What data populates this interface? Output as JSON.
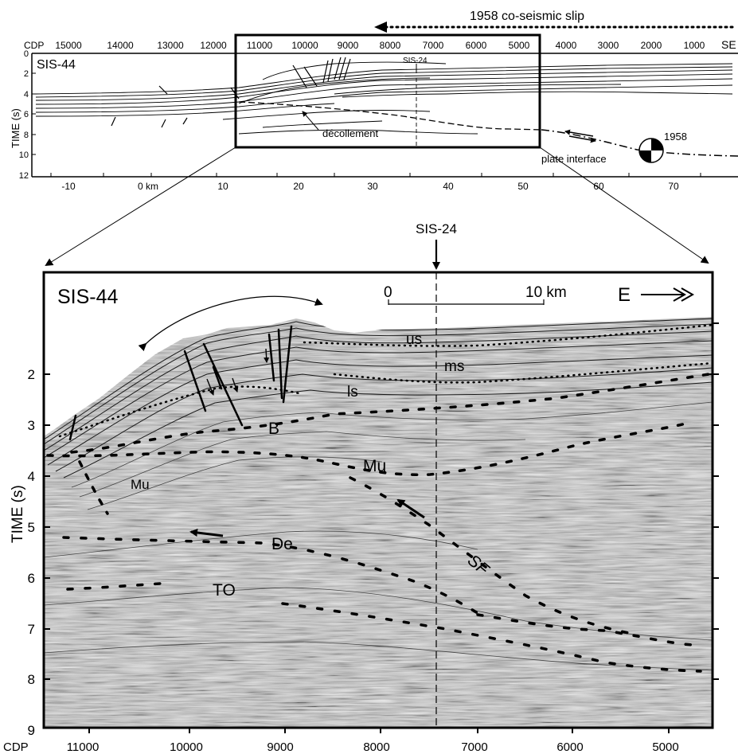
{
  "top_panel": {
    "slip_label": "1958 co-seismic slip",
    "section_label": "SIS-44",
    "cdp_prefix": "CDP",
    "cdp_ticks": [
      "15000",
      "14000",
      "13000",
      "12000",
      "11000",
      "10000",
      "9000",
      "8000",
      "7000",
      "6000",
      "5000",
      "4000",
      "3000",
      "2000",
      "1000"
    ],
    "direction_label": "SE",
    "time_axis_label": "TIME (s)",
    "time_ticks": [
      "0",
      "2",
      "4",
      "6",
      "8",
      "10",
      "12"
    ],
    "km_ticks": [
      "-10",
      "0 km",
      "10",
      "20",
      "30",
      "40",
      "50",
      "60",
      "70"
    ],
    "sis24_label": "SIS-24",
    "decollement_label": "décollement",
    "plate_interface_label": "plate interface",
    "event_label": "1958"
  },
  "marker_label": "SIS-24",
  "bottom_panel": {
    "section_label": "SIS-44",
    "scale_start": "0",
    "scale_end": "10 km",
    "direction_label": "E",
    "time_axis_label": "TIME (s)",
    "time_ticks": [
      "2",
      "3",
      "4",
      "5",
      "6",
      "7",
      "8",
      "9"
    ],
    "cdp_prefix": "CDP",
    "cdp_ticks": [
      "11000",
      "10000",
      "9000",
      "8000",
      "7000",
      "6000",
      "5000"
    ],
    "unit_labels": {
      "us": "us",
      "ms": "ms",
      "ls": "ls",
      "B": "B",
      "Mu_left": "Mu",
      "Mu_center": "Mu",
      "De": "De",
      "TO": "TO",
      "SF": "SF"
    }
  },
  "colors": {
    "ink": "#000000",
    "seismic_background": "#c9c9c9",
    "paper": "#ffffff"
  }
}
